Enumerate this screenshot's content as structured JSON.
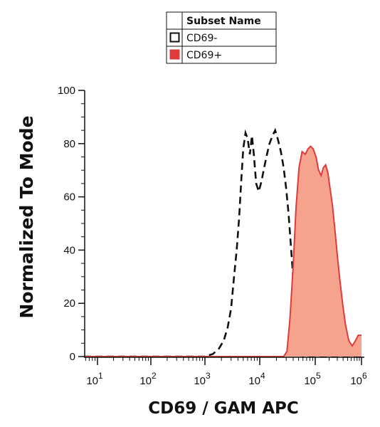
{
  "chart_data": {
    "type": "area",
    "title": "",
    "xlabel": "CD69  / GAM APC",
    "ylabel": "Normalized To Mode",
    "x_scale": "log",
    "xlim": [
      10,
      1000000
    ],
    "ylim": [
      0,
      100
    ],
    "x_ticks": [
      10,
      100,
      1000,
      10000,
      100000,
      1000000
    ],
    "x_tick_labels": [
      {
        "base": "10",
        "exp": "1"
      },
      {
        "base": "10",
        "exp": "2"
      },
      {
        "base": "10",
        "exp": "3"
      },
      {
        "base": "10",
        "exp": "4"
      },
      {
        "base": "10",
        "exp": "5"
      },
      {
        "base": "10",
        "exp": "6"
      }
    ],
    "y_ticks": [
      0,
      20,
      40,
      60,
      80,
      100
    ],
    "y_tick_labels": [
      "0",
      "20",
      "40",
      "60",
      "80",
      "100"
    ],
    "grid": false,
    "legend": {
      "placement": "top-center",
      "header": "Subset Name",
      "entries": [
        "CD69-",
        "CD69+"
      ]
    },
    "series": [
      {
        "name": "CD69-",
        "style": "dashed-outline",
        "color": "#111111",
        "points": [
          [
            5,
            0
          ],
          [
            1000,
            0
          ],
          [
            1400,
            1
          ],
          [
            1800,
            3
          ],
          [
            2200,
            6
          ],
          [
            2600,
            11
          ],
          [
            3000,
            18
          ],
          [
            3400,
            30
          ],
          [
            3800,
            40
          ],
          [
            4200,
            52
          ],
          [
            4600,
            66
          ],
          [
            5000,
            78
          ],
          [
            5500,
            84
          ],
          [
            6000,
            82
          ],
          [
            6600,
            76
          ],
          [
            7200,
            83
          ],
          [
            7800,
            76
          ],
          [
            8600,
            65
          ],
          [
            9600,
            62
          ],
          [
            10800,
            66
          ],
          [
            12000,
            71
          ],
          [
            13500,
            76
          ],
          [
            15000,
            80
          ],
          [
            17000,
            83
          ],
          [
            19000,
            85
          ],
          [
            21000,
            82
          ],
          [
            24000,
            77
          ],
          [
            27000,
            71
          ],
          [
            30000,
            63
          ],
          [
            33000,
            54
          ],
          [
            36000,
            43
          ],
          [
            39000,
            33
          ],
          [
            42000,
            22
          ],
          [
            45000,
            12
          ],
          [
            49000,
            4
          ],
          [
            53000,
            1
          ],
          [
            60000,
            0
          ],
          [
            1000000,
            0
          ]
        ]
      },
      {
        "name": "CD69+",
        "style": "filled",
        "color": "#e03a3a",
        "fill": "#f6a38e",
        "points": [
          [
            5,
            0
          ],
          [
            27000,
            0
          ],
          [
            31000,
            2
          ],
          [
            35000,
            14
          ],
          [
            40000,
            34
          ],
          [
            45000,
            56
          ],
          [
            51000,
            71
          ],
          [
            58000,
            77
          ],
          [
            66000,
            76
          ],
          [
            74000,
            78
          ],
          [
            82000,
            79
          ],
          [
            92000,
            78
          ],
          [
            104000,
            75
          ],
          [
            118000,
            70
          ],
          [
            134000,
            68
          ],
          [
            150000,
            71
          ],
          [
            168000,
            72
          ],
          [
            188000,
            69
          ],
          [
            210000,
            63
          ],
          [
            235000,
            57
          ],
          [
            265000,
            48
          ],
          [
            300000,
            38
          ],
          [
            340000,
            29
          ],
          [
            390000,
            20
          ],
          [
            450000,
            12
          ],
          [
            530000,
            6
          ],
          [
            630000,
            4
          ],
          [
            740000,
            6
          ],
          [
            850000,
            8
          ],
          [
            1000000,
            8
          ]
        ]
      }
    ]
  }
}
